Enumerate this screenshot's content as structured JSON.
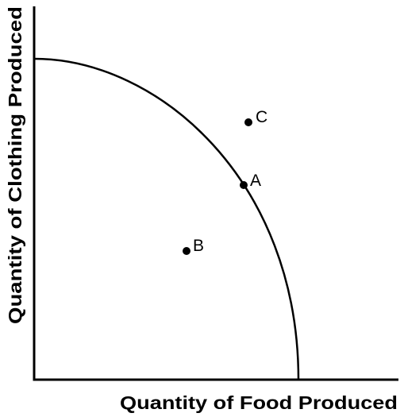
{
  "figure": {
    "x_axis_title": "Quantity of Food Produced",
    "y_axis_title": "Quantity of Clothing Produced",
    "points": [
      {
        "label": "A",
        "position": "on-curve"
      },
      {
        "label": "B",
        "position": "inside-curve"
      },
      {
        "label": "C",
        "position": "outside-curve"
      }
    ]
  },
  "colors": {
    "ink": "#000000",
    "background": "#ffffff"
  }
}
